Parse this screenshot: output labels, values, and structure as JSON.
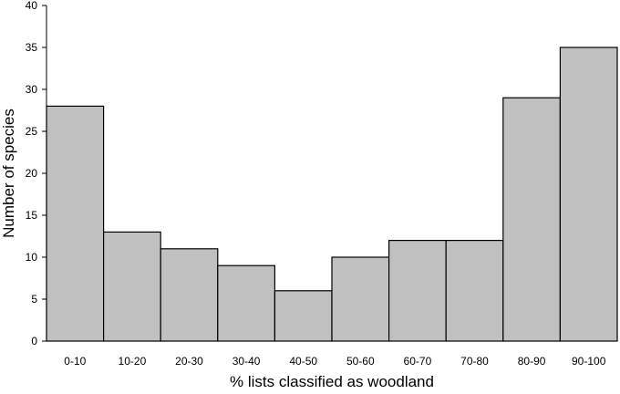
{
  "chart_data": {
    "type": "bar",
    "title": "",
    "xlabel": "% lists classified as woodland",
    "ylabel": "Number of species",
    "categories": [
      "0-10",
      "10-20",
      "20-30",
      "30-40",
      "40-50",
      "50-60",
      "60-70",
      "70-80",
      "80-90",
      "90-100"
    ],
    "values": [
      28,
      13,
      11,
      9,
      6,
      10,
      12,
      12,
      29,
      35
    ],
    "ylim": [
      0,
      40
    ],
    "yticks": [
      "0",
      "5",
      "10",
      "15",
      "20",
      "25",
      "30",
      "35",
      "40"
    ],
    "grid": false,
    "legend": "none",
    "bar_color": "#c0c0c0",
    "bar_edge_color": "#000000"
  }
}
